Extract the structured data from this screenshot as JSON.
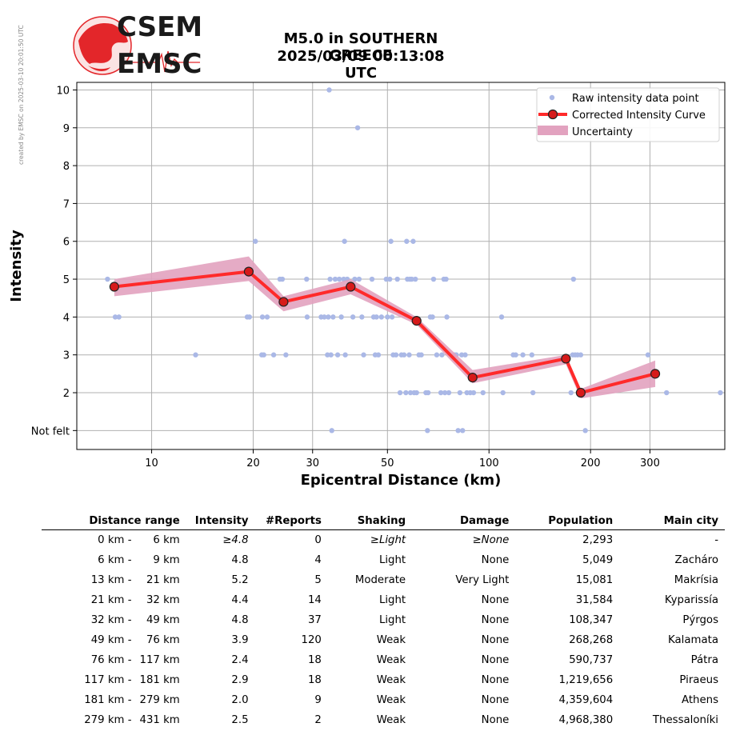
{
  "side_note": "created by EMSC on 2025-03-10 20:01:50 UTC",
  "logo": {
    "line1": "CSEM",
    "line2": "EMSC",
    "colors": {
      "red": "#e3262a",
      "dark": "#1a1a1a"
    }
  },
  "title": {
    "line1": "M5.0 in SOUTHERN GREECE",
    "line2": "2025/03/09 00:13:08 UTC"
  },
  "colors": {
    "raw": "#aab8e6",
    "curve": "#ff2a2a",
    "marker": "#d61a1a",
    "uncertainty": "#e2a2bf",
    "grid": "#b0b0b0"
  },
  "chart_data": {
    "type": "line",
    "xscale": "log",
    "xlabel": "Epicentral Distance (km)",
    "ylabel": "Intensity",
    "xlim": [
      6,
      500
    ],
    "ylim": [
      0.5,
      10.2
    ],
    "x_ticks": [
      10,
      20,
      30,
      50,
      100,
      200,
      300
    ],
    "x_tick_labels": [
      "10",
      "20",
      "30",
      "50",
      "100",
      "200",
      "300"
    ],
    "y_ticks": [
      1,
      2,
      3,
      4,
      5,
      6,
      7,
      8,
      9,
      10
    ],
    "y_tick_labels": [
      "Not felt",
      "2",
      "3",
      "4",
      "5",
      "6",
      "7",
      "8",
      "9",
      "10"
    ],
    "grid": true,
    "legend_position": "top-right",
    "legend": [
      "Raw intensity data point",
      "Corrected Intensity Curve",
      "Uncertainty"
    ],
    "series": [
      {
        "name": "Raw intensity data point",
        "kind": "scatter",
        "points": [
          [
            7.4,
            5
          ],
          [
            7.8,
            4
          ],
          [
            8.0,
            4
          ],
          [
            13.5,
            3
          ],
          [
            19.2,
            4
          ],
          [
            19.5,
            4
          ],
          [
            20.3,
            6
          ],
          [
            21.2,
            3
          ],
          [
            21.5,
            3
          ],
          [
            21.3,
            4
          ],
          [
            22.0,
            4
          ],
          [
            23.0,
            3
          ],
          [
            24.0,
            5
          ],
          [
            24.4,
            5
          ],
          [
            25.0,
            3
          ],
          [
            28.8,
            5
          ],
          [
            28.9,
            4
          ],
          [
            31.8,
            4
          ],
          [
            32.5,
            4
          ],
          [
            33.2,
            3
          ],
          [
            33.4,
            4
          ],
          [
            33.6,
            10
          ],
          [
            33.8,
            5
          ],
          [
            34.0,
            3
          ],
          [
            34.2,
            1
          ],
          [
            34.5,
            4
          ],
          [
            35.0,
            5
          ],
          [
            35.6,
            3
          ],
          [
            36.0,
            5
          ],
          [
            36.5,
            4
          ],
          [
            37.1,
            5
          ],
          [
            37.3,
            6
          ],
          [
            37.5,
            3
          ],
          [
            38.0,
            5
          ],
          [
            39.5,
            4
          ],
          [
            40.0,
            5
          ],
          [
            40.8,
            9
          ],
          [
            41.2,
            5
          ],
          [
            42.0,
            4
          ],
          [
            42.5,
            3
          ],
          [
            45.0,
            5
          ],
          [
            45.5,
            4
          ],
          [
            46.0,
            3
          ],
          [
            46.4,
            4
          ],
          [
            47.0,
            3
          ],
          [
            48.0,
            4
          ],
          [
            49.6,
            5
          ],
          [
            50.0,
            4
          ],
          [
            50.8,
            5
          ],
          [
            51.2,
            6
          ],
          [
            51.6,
            4
          ],
          [
            52.0,
            3
          ],
          [
            53.0,
            3
          ],
          [
            53.5,
            5
          ],
          [
            54.5,
            2
          ],
          [
            55.0,
            3
          ],
          [
            56.0,
            3
          ],
          [
            56.7,
            2
          ],
          [
            57.0,
            6
          ],
          [
            57.3,
            5
          ],
          [
            58.0,
            3
          ],
          [
            58.3,
            5
          ],
          [
            58.5,
            2
          ],
          [
            59.0,
            5
          ],
          [
            59.6,
            6
          ],
          [
            60.0,
            2
          ],
          [
            60.5,
            5
          ],
          [
            61.0,
            2
          ],
          [
            62.0,
            3
          ],
          [
            63.0,
            3
          ],
          [
            65.0,
            2
          ],
          [
            65.7,
            1
          ],
          [
            66.0,
            2
          ],
          [
            67.0,
            4
          ],
          [
            68.0,
            4
          ],
          [
            68.5,
            5
          ],
          [
            70.0,
            3
          ],
          [
            72.0,
            2
          ],
          [
            72.5,
            3
          ],
          [
            73.5,
            5
          ],
          [
            74.0,
            2
          ],
          [
            74.6,
            5
          ],
          [
            75.0,
            4
          ],
          [
            76.0,
            2
          ],
          [
            79.0,
            3
          ],
          [
            80.0,
            3
          ],
          [
            81.0,
            1
          ],
          [
            82.0,
            2
          ],
          [
            83.0,
            3
          ],
          [
            83.5,
            1
          ],
          [
            85.0,
            3
          ],
          [
            86.0,
            2
          ],
          [
            88.0,
            2
          ],
          [
            90.0,
            2
          ],
          [
            96.0,
            2
          ],
          [
            109.0,
            4
          ],
          [
            110.0,
            2
          ],
          [
            118.0,
            3
          ],
          [
            120.0,
            3
          ],
          [
            126.0,
            3
          ],
          [
            134.0,
            3
          ],
          [
            135.0,
            2
          ],
          [
            175.0,
            2
          ],
          [
            177.0,
            3
          ],
          [
            178.0,
            5
          ],
          [
            180.0,
            3
          ],
          [
            183.0,
            3
          ],
          [
            187.0,
            3
          ],
          [
            193.0,
            1
          ],
          [
            296.0,
            3
          ],
          [
            336.0,
            2
          ],
          [
            485.0,
            2
          ]
        ]
      },
      {
        "name": "Corrected Intensity Curve",
        "kind": "line",
        "points": [
          [
            7.75,
            4.8
          ],
          [
            19.4,
            5.2
          ],
          [
            24.6,
            4.4
          ],
          [
            38.9,
            4.8
          ],
          [
            61.0,
            3.9
          ],
          [
            89.4,
            2.4
          ],
          [
            169.0,
            2.9
          ],
          [
            187.0,
            2.0
          ],
          [
            311.0,
            2.5
          ]
        ]
      },
      {
        "name": "Uncertainty",
        "kind": "band",
        "upper": [
          [
            7.75,
            5.0
          ],
          [
            19.4,
            5.6
          ],
          [
            24.6,
            4.55
          ],
          [
            38.9,
            5.0
          ],
          [
            61.0,
            4.0
          ],
          [
            89.4,
            2.6
          ],
          [
            169.0,
            3.0
          ],
          [
            187.0,
            2.1
          ],
          [
            311.0,
            2.85
          ]
        ],
        "lower": [
          [
            7.75,
            4.55
          ],
          [
            19.4,
            4.95
          ],
          [
            24.6,
            4.15
          ],
          [
            38.9,
            4.6
          ],
          [
            61.0,
            3.8
          ],
          [
            89.4,
            2.25
          ],
          [
            169.0,
            2.75
          ],
          [
            187.0,
            1.85
          ],
          [
            311.0,
            2.15
          ]
        ]
      }
    ]
  },
  "table": {
    "headers": [
      "Distance range",
      "Intensity",
      "#Reports",
      "Shaking",
      "Damage",
      "Population",
      "Main city"
    ],
    "rows": [
      [
        "0 km -",
        "6 km",
        "≥4.8",
        "0",
        "≥Light",
        "≥None",
        "2,293",
        "-"
      ],
      [
        "6 km -",
        "9 km",
        "4.8",
        "4",
        "Light",
        "None",
        "5,049",
        "Zacháro"
      ],
      [
        "13 km -",
        "21 km",
        "5.2",
        "5",
        "Moderate",
        "Very Light",
        "15,081",
        "Makrísia"
      ],
      [
        "21 km -",
        "32 km",
        "4.4",
        "14",
        "Light",
        "None",
        "31,584",
        "Kyparissía"
      ],
      [
        "32 km -",
        "49 km",
        "4.8",
        "37",
        "Light",
        "None",
        "108,347",
        "Pýrgos"
      ],
      [
        "49 km -",
        "76 km",
        "3.9",
        "120",
        "Weak",
        "None",
        "268,268",
        "Kalamata"
      ],
      [
        "76 km -",
        "117 km",
        "2.4",
        "18",
        "Weak",
        "None",
        "590,737",
        "Pátra"
      ],
      [
        "117 km -",
        "181 km",
        "2.9",
        "18",
        "Weak",
        "None",
        "1,219,656",
        "Piraeus"
      ],
      [
        "181 km -",
        "279 km",
        "2.0",
        "9",
        "Weak",
        "None",
        "4,359,604",
        "Athens"
      ],
      [
        "279 km -",
        "431 km",
        "2.5",
        "2",
        "Weak",
        "None",
        "4,968,380",
        "Thessaloníki"
      ]
    ]
  }
}
